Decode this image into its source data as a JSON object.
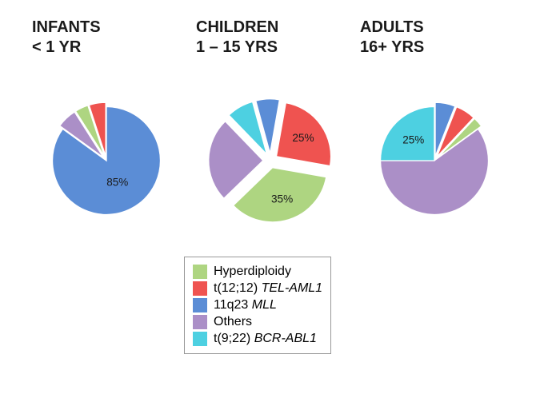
{
  "headers": [
    {
      "title": "INFANTS",
      "sub": "< 1 YR"
    },
    {
      "title": "CHILDREN",
      "sub": "1 – 15 YRS"
    },
    {
      "title": "ADULTS",
      "sub": "16+ YRS"
    }
  ],
  "legend": [
    {
      "label": "Hyperdiploidy",
      "color": "#aed581",
      "italic_part": ""
    },
    {
      "label": "t(12;12) ",
      "color": "#ef5350",
      "italic_part": "TEL-AML1"
    },
    {
      "label": "11q23 ",
      "color": "#5b8dd6",
      "italic_part": "MLL"
    },
    {
      "label": "Others",
      "color": "#ab8fc7",
      "italic_part": ""
    },
    {
      "label": "t(9;22) ",
      "color": "#4dd0e1",
      "italic_part": "BCR-ABL1"
    }
  ],
  "pies": {
    "infants": {
      "type": "pie",
      "radius": 75,
      "explode": 0,
      "start_angle": -90,
      "background": "#ffffff",
      "slices": [
        {
          "value": 85,
          "color": "#5b8dd6",
          "label": "85%",
          "label_r": 0.45,
          "exploded": false
        },
        {
          "value": 6,
          "color": "#ab8fc7",
          "label": "",
          "exploded": true
        },
        {
          "value": 4,
          "color": "#aed581",
          "label": "",
          "exploded": true
        },
        {
          "value": 5,
          "color": "#ef5350",
          "label": "",
          "exploded": true
        }
      ]
    },
    "children": {
      "type": "pie",
      "radius": 75,
      "explode": 10,
      "start_angle": -80,
      "background": "#ffffff",
      "slices": [
        {
          "value": 25,
          "color": "#ef5350",
          "label": "25%",
          "label_r": 0.6,
          "exploded": true
        },
        {
          "value": 35,
          "color": "#aed581",
          "label": "35%",
          "label_r": 0.6,
          "exploded": true
        },
        {
          "value": 25,
          "color": "#ab8fc7",
          "label": "",
          "exploded": true
        },
        {
          "value": 8,
          "color": "#4dd0e1",
          "label": "",
          "exploded": true
        },
        {
          "value": 7,
          "color": "#5b8dd6",
          "label": "",
          "exploded": true
        }
      ]
    },
    "adults": {
      "type": "pie",
      "radius": 75,
      "explode": 0,
      "start_angle": -90,
      "background": "#ffffff",
      "slices": [
        {
          "value": 6,
          "color": "#5b8dd6",
          "label": "",
          "exploded": true
        },
        {
          "value": 6,
          "color": "#ef5350",
          "label": "",
          "exploded": true
        },
        {
          "value": 3,
          "color": "#aed581",
          "label": "",
          "exploded": true
        },
        {
          "value": 60,
          "color": "#ab8fc7",
          "label": "",
          "exploded": false
        },
        {
          "value": 25,
          "color": "#4dd0e1",
          "label": "25%",
          "label_r": 0.55,
          "exploded": false
        }
      ]
    }
  }
}
